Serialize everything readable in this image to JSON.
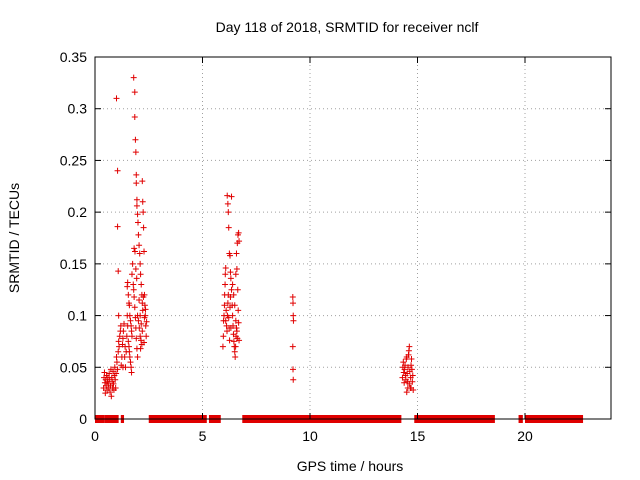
{
  "chart_data": {
    "type": "scatter",
    "title": "Day 118 of 2018, SRMTID for receiver nclf",
    "xlabel": "GPS time / hours",
    "ylabel": "SRMTID / TECUs",
    "xlim": [
      0,
      24
    ],
    "ylim": [
      0,
      0.35
    ],
    "x_ticks": [
      0,
      5,
      10,
      15,
      20
    ],
    "x_tick_labels": [
      "0",
      "5",
      "10",
      "15",
      "20"
    ],
    "y_ticks": [
      0,
      0.05,
      0.1,
      0.15,
      0.2,
      0.25,
      0.3,
      0.35
    ],
    "y_tick_labels": [
      "0",
      "0.05",
      "0.1",
      "0.15",
      "0.2",
      "0.25",
      "0.3",
      "0.35"
    ],
    "grid": true,
    "marker": "plus",
    "color": "#e00000",
    "zero_segments": [
      [
        0.0,
        0.45
      ],
      [
        0.45,
        1.1
      ],
      [
        1.2,
        1.35
      ],
      [
        2.5,
        5.2
      ],
      [
        5.3,
        5.85
      ],
      [
        6.85,
        14.25
      ],
      [
        14.85,
        18.6
      ],
      [
        19.7,
        19.9
      ],
      [
        20.0,
        22.7
      ]
    ],
    "points": [
      [
        0.4,
        0.03
      ],
      [
        0.42,
        0.04
      ],
      [
        0.44,
        0.045
      ],
      [
        0.46,
        0.035
      ],
      [
        0.48,
        0.025
      ],
      [
        0.5,
        0.038
      ],
      [
        0.52,
        0.032
      ],
      [
        0.54,
        0.042
      ],
      [
        0.56,
        0.028
      ],
      [
        0.58,
        0.036
      ],
      [
        0.6,
        0.04
      ],
      [
        0.62,
        0.034
      ],
      [
        0.64,
        0.03
      ],
      [
        0.66,
        0.044
      ],
      [
        0.68,
        0.038
      ],
      [
        0.7,
        0.026
      ],
      [
        0.72,
        0.032
      ],
      [
        0.74,
        0.048
      ],
      [
        0.76,
        0.022
      ],
      [
        0.78,
        0.04
      ],
      [
        0.8,
        0.036
      ],
      [
        0.82,
        0.03
      ],
      [
        0.84,
        0.046
      ],
      [
        0.86,
        0.034
      ],
      [
        0.88,
        0.028
      ],
      [
        0.9,
        0.042
      ],
      [
        0.92,
        0.05
      ],
      [
        0.94,
        0.038
      ],
      [
        0.96,
        0.03
      ],
      [
        0.98,
        0.044
      ],
      [
        1.0,
        0.06
      ],
      [
        1.02,
        0.055
      ],
      [
        1.05,
        0.048
      ],
      [
        1.08,
        0.065
      ],
      [
        1.1,
        0.075
      ],
      [
        1.12,
        0.07
      ],
      [
        1.15,
        0.08
      ],
      [
        1.18,
        0.085
      ],
      [
        1.2,
        0.09
      ],
      [
        1.22,
        0.052
      ],
      [
        1.0,
        0.31
      ],
      [
        1.05,
        0.24
      ],
      [
        1.05,
        0.186
      ],
      [
        1.08,
        0.143
      ],
      [
        1.1,
        0.1
      ],
      [
        1.3,
        0.05
      ],
      [
        1.25,
        0.06
      ],
      [
        1.28,
        0.072
      ],
      [
        1.3,
        0.078
      ],
      [
        1.32,
        0.085
      ],
      [
        1.35,
        0.092
      ],
      [
        1.38,
        0.06
      ],
      [
        1.4,
        0.07
      ],
      [
        1.42,
        0.05
      ],
      [
        1.45,
        0.065
      ],
      [
        1.48,
        0.08
      ],
      [
        1.5,
        0.128
      ],
      [
        1.52,
        0.132
      ],
      [
        1.55,
        0.12
      ],
      [
        1.58,
        0.112
      ],
      [
        1.6,
        0.11
      ],
      [
        1.62,
        0.1
      ],
      [
        1.65,
        0.095
      ],
      [
        1.68,
        0.09
      ],
      [
        1.7,
        0.085
      ],
      [
        1.72,
        0.08
      ],
      [
        1.5,
        0.1
      ],
      [
        1.52,
        0.09
      ],
      [
        1.55,
        0.075
      ],
      [
        1.58,
        0.07
      ],
      [
        1.6,
        0.065
      ],
      [
        1.62,
        0.06
      ],
      [
        1.65,
        0.055
      ],
      [
        1.68,
        0.05
      ],
      [
        1.7,
        0.045
      ],
      [
        1.72,
        0.14
      ],
      [
        1.75,
        0.15
      ],
      [
        1.78,
        0.13
      ],
      [
        1.8,
        0.125
      ],
      [
        1.82,
        0.118
      ],
      [
        1.85,
        0.108
      ],
      [
        1.88,
        0.098
      ],
      [
        1.9,
        0.088
      ],
      [
        1.92,
        0.078
      ],
      [
        1.95,
        0.068
      ],
      [
        1.98,
        0.06
      ],
      [
        1.8,
        0.33
      ],
      [
        1.85,
        0.316
      ],
      [
        1.85,
        0.292
      ],
      [
        1.88,
        0.27
      ],
      [
        1.9,
        0.258
      ],
      [
        1.92,
        0.236
      ],
      [
        1.92,
        0.228
      ],
      [
        1.95,
        0.212
      ],
      [
        1.95,
        0.206
      ],
      [
        1.98,
        0.198
      ],
      [
        2.0,
        0.19
      ],
      [
        2.02,
        0.178
      ],
      [
        2.05,
        0.168
      ],
      [
        2.08,
        0.16
      ],
      [
        2.1,
        0.15
      ],
      [
        2.12,
        0.14
      ],
      [
        2.15,
        0.13
      ],
      [
        2.18,
        0.12
      ],
      [
        2.2,
        0.112
      ],
      [
        2.22,
        0.105
      ],
      [
        1.82,
        0.165
      ],
      [
        1.86,
        0.162
      ],
      [
        1.9,
        0.145
      ],
      [
        1.94,
        0.136
      ],
      [
        1.98,
        0.1
      ],
      [
        2.02,
        0.095
      ],
      [
        2.06,
        0.088
      ],
      [
        2.1,
        0.08
      ],
      [
        2.14,
        0.076
      ],
      [
        2.18,
        0.072
      ],
      [
        2.2,
        0.23
      ],
      [
        2.22,
        0.21
      ],
      [
        2.24,
        0.2
      ],
      [
        2.26,
        0.185
      ],
      [
        2.28,
        0.162
      ],
      [
        2.3,
        0.12
      ],
      [
        2.32,
        0.11
      ],
      [
        2.34,
        0.1
      ],
      [
        2.36,
        0.09
      ],
      [
        2.38,
        0.08
      ],
      [
        2.05,
        0.115
      ],
      [
        2.1,
        0.1
      ],
      [
        2.15,
        0.092
      ],
      [
        2.2,
        0.085
      ],
      [
        2.25,
        0.118
      ],
      [
        2.3,
        0.098
      ],
      [
        2.35,
        0.106
      ],
      [
        2.4,
        0.094
      ],
      [
        2.12,
        0.068
      ],
      [
        2.28,
        0.074
      ],
      [
        5.95,
        0.07
      ],
      [
        5.97,
        0.08
      ],
      [
        5.98,
        0.095
      ],
      [
        6.0,
        0.1
      ],
      [
        6.02,
        0.11
      ],
      [
        6.03,
        0.12
      ],
      [
        6.05,
        0.13
      ],
      [
        6.06,
        0.14
      ],
      [
        6.08,
        0.146
      ],
      [
        6.1,
        0.105
      ],
      [
        6.12,
        0.09
      ],
      [
        6.14,
        0.085
      ],
      [
        6.16,
        0.1
      ],
      [
        6.18,
        0.112
      ],
      [
        6.2,
        0.12
      ],
      [
        6.22,
        0.098
      ],
      [
        6.24,
        0.088
      ],
      [
        6.26,
        0.076
      ],
      [
        6.28,
        0.108
      ],
      [
        6.3,
        0.118
      ],
      [
        6.15,
        0.216
      ],
      [
        6.18,
        0.208
      ],
      [
        6.2,
        0.2
      ],
      [
        6.22,
        0.185
      ],
      [
        6.25,
        0.16
      ],
      [
        6.28,
        0.158
      ],
      [
        6.3,
        0.142
      ],
      [
        6.32,
        0.136
      ],
      [
        6.35,
        0.125
      ],
      [
        6.38,
        0.11
      ],
      [
        6.4,
        0.1
      ],
      [
        6.42,
        0.09
      ],
      [
        6.44,
        0.082
      ],
      [
        6.46,
        0.075
      ],
      [
        6.48,
        0.07
      ],
      [
        6.5,
        0.065
      ],
      [
        6.52,
        0.06
      ],
      [
        6.54,
        0.07
      ],
      [
        6.56,
        0.08
      ],
      [
        6.58,
        0.088
      ],
      [
        6.4,
        0.13
      ],
      [
        6.45,
        0.12
      ],
      [
        6.5,
        0.11
      ],
      [
        6.55,
        0.095
      ],
      [
        6.6,
        0.085
      ],
      [
        6.62,
        0.078
      ],
      [
        6.64,
        0.125
      ],
      [
        6.66,
        0.105
      ],
      [
        6.68,
        0.093
      ],
      [
        6.7,
        0.076
      ],
      [
        6.55,
        0.14
      ],
      [
        6.58,
        0.16
      ],
      [
        6.62,
        0.17
      ],
      [
        6.65,
        0.178
      ],
      [
        6.68,
        0.18
      ],
      [
        6.7,
        0.172
      ],
      [
        6.35,
        0.215
      ],
      [
        6.6,
        0.145
      ],
      [
        6.08,
        0.095
      ],
      [
        6.32,
        0.088
      ],
      [
        9.2,
        0.118
      ],
      [
        9.21,
        0.112
      ],
      [
        9.22,
        0.1
      ],
      [
        9.23,
        0.095
      ],
      [
        9.2,
        0.07
      ],
      [
        9.21,
        0.048
      ],
      [
        9.22,
        0.038
      ],
      [
        14.3,
        0.04
      ],
      [
        14.32,
        0.05
      ],
      [
        14.34,
        0.055
      ],
      [
        14.36,
        0.045
      ],
      [
        14.38,
        0.035
      ],
      [
        14.4,
        0.048
      ],
      [
        14.42,
        0.052
      ],
      [
        14.44,
        0.042
      ],
      [
        14.46,
        0.038
      ],
      [
        14.48,
        0.058
      ],
      [
        14.5,
        0.06
      ],
      [
        14.52,
        0.044
      ],
      [
        14.54,
        0.036
      ],
      [
        14.56,
        0.05
      ],
      [
        14.58,
        0.062
      ],
      [
        14.6,
        0.066
      ],
      [
        14.62,
        0.07
      ],
      [
        14.64,
        0.046
      ],
      [
        14.66,
        0.03
      ],
      [
        14.68,
        0.04
      ],
      [
        14.7,
        0.052
      ],
      [
        14.72,
        0.058
      ],
      [
        14.74,
        0.048
      ],
      [
        14.76,
        0.036
      ],
      [
        14.78,
        0.042
      ],
      [
        14.8,
        0.028
      ],
      [
        14.5,
        0.026
      ],
      [
        14.55,
        0.03
      ],
      [
        14.62,
        0.034
      ],
      [
        14.7,
        0.03
      ]
    ]
  }
}
